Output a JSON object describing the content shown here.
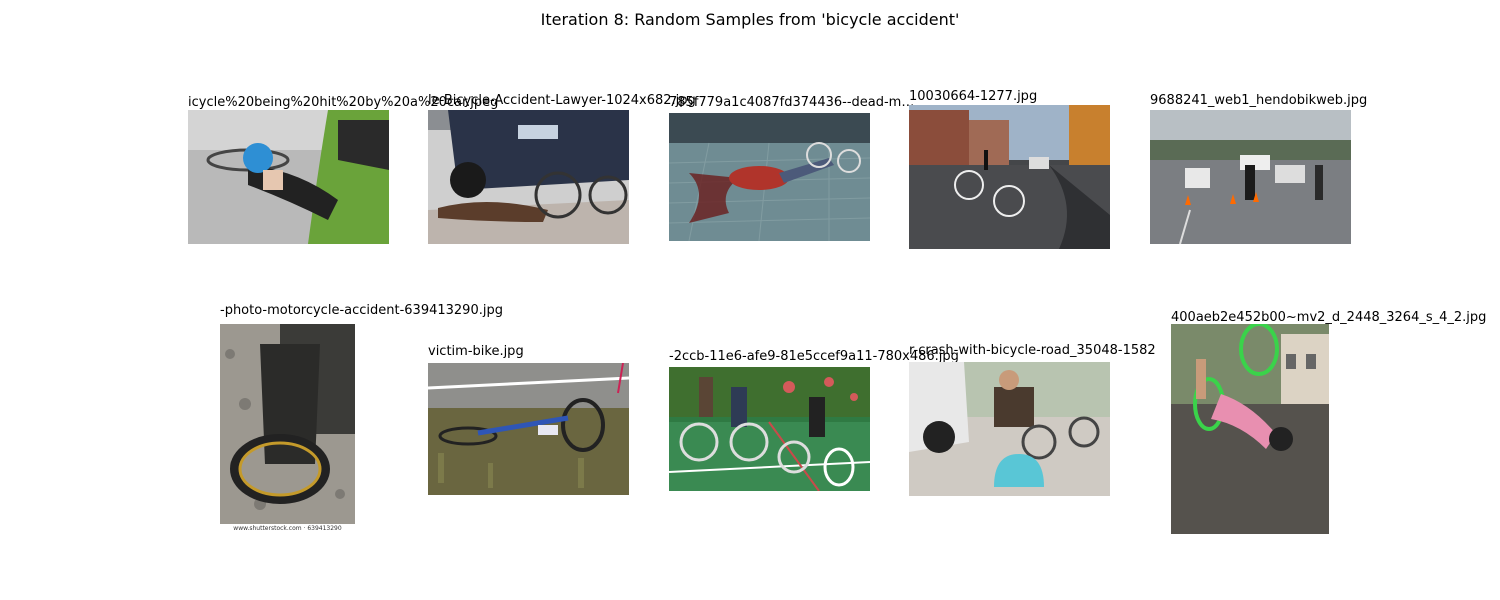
{
  "figure": {
    "title": "Iteration 8: Random Samples from 'bicycle accident'"
  },
  "samples": [
    {
      "title": "icycle%20being%20hit%20by%20a%20car.jpeg",
      "image": "cyclist-hit-by-green-car-photo"
    },
    {
      "title": "le-Bicycle-Accident-Lawyer-1024x682.jpg",
      "image": "woman-lying-by-car-and-bike-photo"
    },
    {
      "title": "785f779a1c4087fd374436--dead-m…",
      "image": "man-lying-on-brick-road-photo"
    },
    {
      "title": "10030664-1277.jpg",
      "image": "bike-on-street-with-police-photo"
    },
    {
      "title": "9688241_web1_hendobikweb.jpg",
      "image": "police-at-accident-scene-photo"
    },
    {
      "title": "-photo-motorcycle-accident-639413290.jpg",
      "image": "wrecked-motorcycle-wheel-photo",
      "watermark": "www.shutterstock.com · 639413290"
    },
    {
      "title": "victim-bike.jpg",
      "image": "blue-bike-on-grass-photo"
    },
    {
      "title": "-2ccb-11e6-afe9-81e5ccef9a11-780x486.jpg",
      "image": "bmx-riders-crash-photo"
    },
    {
      "title": "r-crash-with-bicycle-road_35048-1582",
      "image": "man-with-helmet-by-car-photo"
    },
    {
      "title": "400aeb2e452b00~mv2_d_2448_3264_s_4_2.jpg",
      "image": "rider-falling-green-bike-photo"
    }
  ]
}
